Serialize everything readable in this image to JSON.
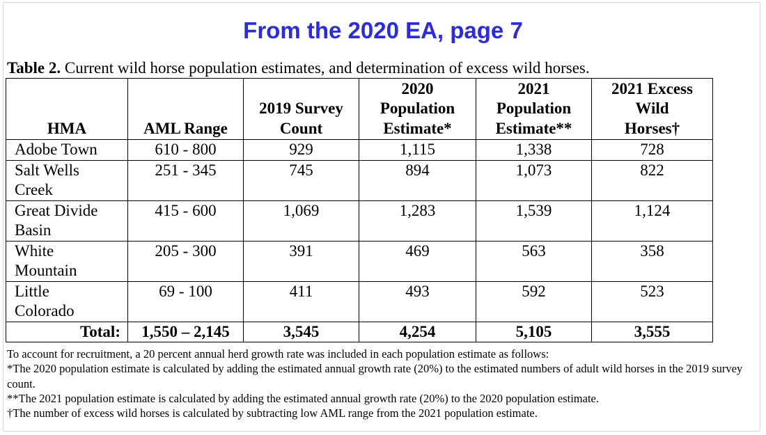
{
  "heading": "From the 2020 EA, page 7",
  "caption": {
    "label": "Table 2.",
    "text": "Current wild horse population estimates, and determination of excess wild horses."
  },
  "table": {
    "headers": [
      [
        "HMA"
      ],
      [
        "AML Range"
      ],
      [
        "2019 Survey",
        "Count"
      ],
      [
        "2020",
        "Population",
        "Estimate*"
      ],
      [
        "2021",
        "Population",
        "Estimate**"
      ],
      [
        "2021 Excess",
        "Wild",
        "Horses†"
      ]
    ],
    "rows": [
      {
        "hma": [
          "Adobe Town"
        ],
        "aml": "610 - 800",
        "survey_2019": "929",
        "est_2020": "1,115",
        "est_2021": "1,338",
        "excess_2021": "728"
      },
      {
        "hma": [
          "Salt Wells",
          "Creek"
        ],
        "aml": "251 - 345",
        "survey_2019": "745",
        "est_2020": "894",
        "est_2021": "1,073",
        "excess_2021": "822"
      },
      {
        "hma": [
          "Great Divide",
          "Basin"
        ],
        "aml": "415 - 600",
        "survey_2019": "1,069",
        "est_2020": "1,283",
        "est_2021": "1,539",
        "excess_2021": "1,124"
      },
      {
        "hma": [
          "White",
          "Mountain"
        ],
        "aml": "205 - 300",
        "survey_2019": "391",
        "est_2020": "469",
        "est_2021": "563",
        "excess_2021": "358"
      },
      {
        "hma": [
          "Little",
          "Colorado"
        ],
        "aml": "69 - 100",
        "survey_2019": "411",
        "est_2020": "493",
        "est_2021": "592",
        "excess_2021": "523"
      }
    ],
    "total": {
      "label": "Total:",
      "aml": "1,550 – 2,145",
      "survey_2019": "3,545",
      "est_2020": "4,254",
      "est_2021": "5,105",
      "excess_2021": "3,555"
    }
  },
  "notes": [
    "To account for recruitment, a 20 percent annual herd growth rate was included in each population estimate as follows:",
    "*The 2020 population estimate is calculated by adding the estimated annual growth rate (20%) to the estimated numbers of adult wild horses in the 2019 survey count.",
    "**The 2021 population estimate is calculated by adding the estimated annual growth rate (20%) to the 2020 population estimate.",
    "†The number of excess wild horses is calculated by subtracting low AML range from the 2021 population estimate."
  ]
}
